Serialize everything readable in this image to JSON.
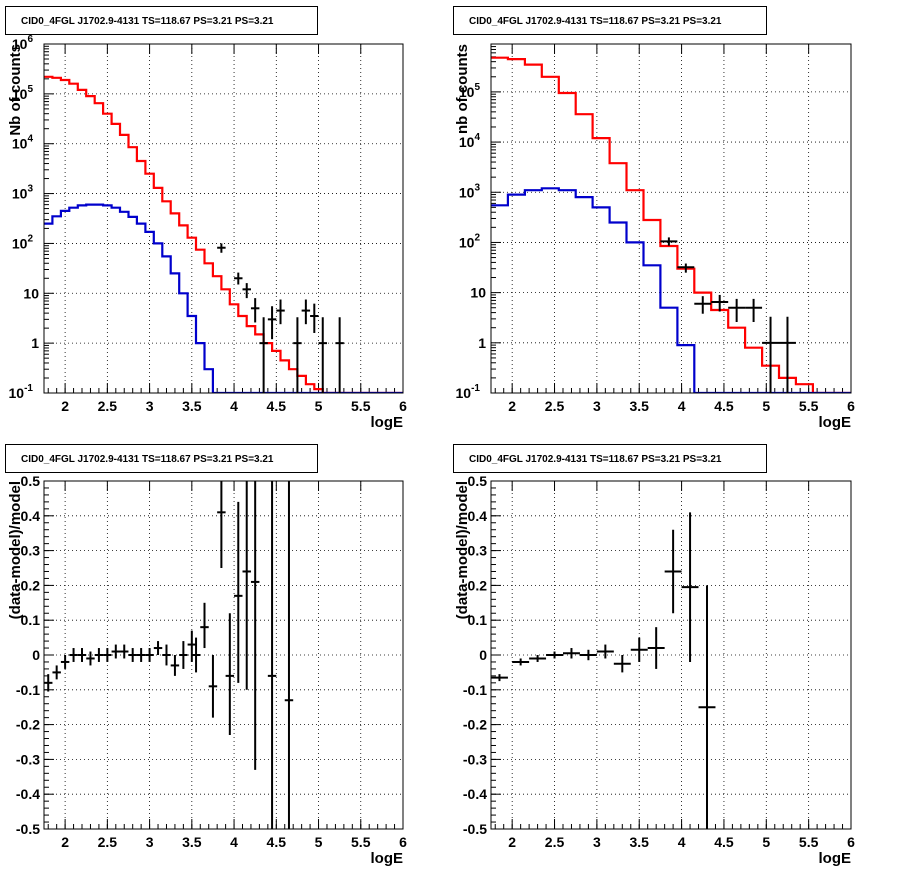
{
  "chart_data": [
    {
      "type": "line",
      "title": "CID0_4FGL J1702.9-4131 TS=118.67 PS=3.21 PS=3.21",
      "xlabel": "logE",
      "ylabel": "Nb of counts",
      "ylog": true,
      "xlim": [
        1.75,
        6.0
      ],
      "ylim": [
        0.1,
        1000000
      ],
      "xticks": [
        "2",
        "2.5",
        "3",
        "3.5",
        "4",
        "4.5",
        "5",
        "5.5",
        "6"
      ],
      "yticks": [
        {
          "base": "10",
          "exp": "-1"
        },
        {
          "base": "1",
          "exp": ""
        },
        {
          "base": "10",
          "exp": ""
        },
        {
          "base": "10",
          "exp": "2"
        },
        {
          "base": "10",
          "exp": "3"
        },
        {
          "base": "10",
          "exp": "4"
        },
        {
          "base": "10",
          "exp": "5"
        },
        {
          "base": "10",
          "exp": "6"
        }
      ],
      "grid": true,
      "bin_edges": [
        1.75,
        1.85,
        1.95,
        2.05,
        2.15,
        2.25,
        2.35,
        2.45,
        2.55,
        2.65,
        2.75,
        2.85,
        2.95,
        3.05,
        3.15,
        3.25,
        3.35,
        3.45,
        3.55,
        3.65,
        3.75,
        3.85,
        3.95,
        4.05,
        4.15,
        4.25,
        4.35,
        4.45,
        4.55,
        4.65,
        4.75,
        4.85,
        4.95,
        5.05,
        5.15,
        5.25,
        5.35,
        5.45,
        5.55,
        5.65,
        5.75,
        5.85,
        5.95,
        6.0
      ],
      "series": [
        {
          "color": "#ff0000",
          "style": "step",
          "values": [
            220000,
            210000,
            190000,
            160000,
            120000,
            90000,
            65000,
            40000,
            25000,
            15000,
            8500,
            4500,
            2500,
            1300,
            700,
            400,
            230,
            130,
            75,
            40,
            22,
            12,
            6,
            3.5,
            2.2,
            1.5,
            1.0,
            0.7,
            0.45,
            0.3,
            0.22,
            0.15,
            0.12,
            0.1,
            0.1,
            0.1,
            0.1,
            0.1,
            0.1,
            0.1,
            0.1,
            0.1,
            0.1
          ]
        },
        {
          "color": "#0000cc",
          "style": "step",
          "values": [
            250,
            350,
            450,
            520,
            580,
            600,
            600,
            580,
            520,
            430,
            340,
            250,
            170,
            100,
            55,
            25,
            10,
            3.5,
            1.0,
            0.3,
            0.1,
            0.1,
            0.1,
            0.1,
            0.1,
            0.1,
            0.1,
            0.1,
            0.1,
            0.1,
            0.1,
            0.1,
            0.1,
            0.1,
            0.1,
            0.1,
            0.1,
            0.1,
            0.1,
            0.1,
            0.1,
            0.1,
            0.1
          ]
        },
        {
          "color": "#000000",
          "style": "errorbars",
          "points": [
            {
              "x": 3.85,
              "y": 82,
              "lo": 65,
              "hi": 100,
              "xerr": 0.05
            },
            {
              "x": 4.05,
              "y": 20,
              "lo": 15,
              "hi": 26,
              "xerr": 0.05
            },
            {
              "x": 4.15,
              "y": 12,
              "lo": 8,
              "hi": 16,
              "xerr": 0.05
            },
            {
              "x": 4.25,
              "y": 5,
              "lo": 2.6,
              "hi": 8,
              "xerr": 0.05
            },
            {
              "x": 4.35,
              "y": 1,
              "lo": 0.1,
              "hi": 3.3,
              "xerr": 0.05
            },
            {
              "x": 4.45,
              "y": 3,
              "lo": 1.2,
              "hi": 5.5,
              "xerr": 0.05
            },
            {
              "x": 4.55,
              "y": 4.5,
              "lo": 2.4,
              "hi": 7.5,
              "xerr": 0.05
            },
            {
              "x": 4.75,
              "y": 1,
              "lo": 0.1,
              "hi": 3.3,
              "xerr": 0.05
            },
            {
              "x": 4.85,
              "y": 4.5,
              "lo": 2.4,
              "hi": 7.5,
              "xerr": 0.05
            },
            {
              "x": 4.95,
              "y": 3.5,
              "lo": 1.6,
              "hi": 6.2,
              "xerr": 0.05
            },
            {
              "x": 5.05,
              "y": 1,
              "lo": 0.1,
              "hi": 3.3,
              "xerr": 0.05
            },
            {
              "x": 5.25,
              "y": 1,
              "lo": 0.1,
              "hi": 3.3,
              "xerr": 0.05
            }
          ]
        }
      ]
    },
    {
      "type": "line",
      "title": "CID0_4FGL J1702.9-4131 TS=118.67 PS=3.21 PS=3.21",
      "xlabel": "logE",
      "ylabel": "nb of counts",
      "ylog": true,
      "xlim": [
        1.75,
        6.0
      ],
      "ylim": [
        0.1,
        900000
      ],
      "xticks": [
        "2",
        "2.5",
        "3",
        "3.5",
        "4",
        "4.5",
        "5",
        "5.5",
        "6"
      ],
      "yticks": [
        {
          "base": "10",
          "exp": "-1"
        },
        {
          "base": "1",
          "exp": ""
        },
        {
          "base": "10",
          "exp": ""
        },
        {
          "base": "10",
          "exp": "2"
        },
        {
          "base": "10",
          "exp": "3"
        },
        {
          "base": "10",
          "exp": "4"
        },
        {
          "base": "10",
          "exp": "5"
        }
      ],
      "grid": true,
      "bin_edges": [
        1.75,
        1.95,
        2.15,
        2.35,
        2.55,
        2.75,
        2.95,
        3.15,
        3.35,
        3.55,
        3.75,
        3.95,
        4.15,
        4.35,
        4.55,
        4.75,
        4.95,
        5.15,
        5.35,
        5.55,
        5.75,
        5.95,
        6.0
      ],
      "series": [
        {
          "color": "#ff0000",
          "style": "step",
          "values": [
            480000,
            450000,
            350000,
            200000,
            95000,
            36000,
            12000,
            3800,
            1100,
            280,
            85,
            30,
            10,
            4.5,
            2.0,
            0.8,
            0.35,
            0.2,
            0.15,
            0.1,
            0.1,
            0.1
          ]
        },
        {
          "color": "#0000cc",
          "style": "step",
          "values": [
            550,
            900,
            1100,
            1200,
            1100,
            800,
            500,
            250,
            100,
            35,
            5,
            0.9,
            0.1,
            0.1,
            0.1,
            0.1,
            0.1,
            0.1,
            0.1,
            0.1,
            0.1,
            0.1
          ]
        },
        {
          "color": "#000000",
          "style": "errorbars",
          "points": [
            {
              "x": 3.85,
              "y": 105,
              "lo": 86,
              "hi": 126,
              "xerr": 0.1
            },
            {
              "x": 4.05,
              "y": 32,
              "lo": 25,
              "hi": 38,
              "xerr": 0.1
            },
            {
              "x": 4.25,
              "y": 6,
              "lo": 3.8,
              "hi": 8.5,
              "xerr": 0.1
            },
            {
              "x": 4.45,
              "y": 6.5,
              "lo": 4.2,
              "hi": 9.0,
              "xerr": 0.1
            },
            {
              "x": 4.65,
              "y": 5,
              "lo": 2.6,
              "hi": 7.5,
              "xerr": 0.1
            },
            {
              "x": 4.85,
              "y": 5,
              "lo": 2.6,
              "hi": 7.5,
              "xerr": 0.1
            },
            {
              "x": 5.05,
              "y": 1,
              "lo": 0.1,
              "hi": 3.3,
              "xerr": 0.1
            },
            {
              "x": 5.25,
              "y": 1,
              "lo": 0.1,
              "hi": 3.3,
              "xerr": 0.1
            }
          ]
        }
      ]
    },
    {
      "type": "scatter",
      "title": "CID0_4FGL J1702.9-4131 TS=118.67 PS=3.21 PS=3.21",
      "xlabel": "logE",
      "ylabel": "(data-model)/model",
      "ylog": false,
      "xlim": [
        1.75,
        6.0
      ],
      "ylim": [
        -0.5,
        0.5
      ],
      "xticks": [
        "2",
        "2.5",
        "3",
        "3.5",
        "4",
        "4.5",
        "5",
        "5.5",
        "6"
      ],
      "yticks": [
        "-0.5",
        "-0.4",
        "-0.3",
        "-0.2",
        "-0.1",
        "0",
        "0.1",
        "0.2",
        "0.3",
        "0.4",
        "0.5"
      ],
      "grid": true,
      "series": [
        {
          "color": "#000000",
          "style": "errorbars",
          "points": [
            {
              "x": 1.8,
              "y": -0.08,
              "lo": -0.105,
              "hi": -0.055,
              "xerr": 0.05
            },
            {
              "x": 1.9,
              "y": -0.05,
              "lo": -0.07,
              "hi": -0.03,
              "xerr": 0.05
            },
            {
              "x": 2.0,
              "y": -0.02,
              "lo": -0.04,
              "hi": 0.0,
              "xerr": 0.05
            },
            {
              "x": 2.1,
              "y": 0.0,
              "lo": -0.02,
              "hi": 0.02,
              "xerr": 0.05
            },
            {
              "x": 2.2,
              "y": 0.0,
              "lo": -0.02,
              "hi": 0.02,
              "xerr": 0.05
            },
            {
              "x": 2.3,
              "y": -0.01,
              "lo": -0.03,
              "hi": 0.01,
              "xerr": 0.05
            },
            {
              "x": 2.4,
              "y": 0.0,
              "lo": -0.02,
              "hi": 0.02,
              "xerr": 0.05
            },
            {
              "x": 2.5,
              "y": 0.0,
              "lo": -0.02,
              "hi": 0.02,
              "xerr": 0.05
            },
            {
              "x": 2.6,
              "y": 0.01,
              "lo": -0.01,
              "hi": 0.03,
              "xerr": 0.05
            },
            {
              "x": 2.7,
              "y": 0.01,
              "lo": -0.01,
              "hi": 0.03,
              "xerr": 0.05
            },
            {
              "x": 2.8,
              "y": 0.0,
              "lo": -0.02,
              "hi": 0.02,
              "xerr": 0.05
            },
            {
              "x": 2.9,
              "y": 0.0,
              "lo": -0.02,
              "hi": 0.02,
              "xerr": 0.05
            },
            {
              "x": 3.0,
              "y": 0.0,
              "lo": -0.02,
              "hi": 0.02,
              "xerr": 0.05
            },
            {
              "x": 3.1,
              "y": 0.02,
              "lo": 0.0,
              "hi": 0.04,
              "xerr": 0.05
            },
            {
              "x": 3.2,
              "y": 0.0,
              "lo": -0.03,
              "hi": 0.03,
              "xerr": 0.05
            },
            {
              "x": 3.3,
              "y": -0.03,
              "lo": -0.06,
              "hi": 0.0,
              "xerr": 0.05
            },
            {
              "x": 3.4,
              "y": 0.0,
              "lo": -0.04,
              "hi": 0.04,
              "xerr": 0.05
            },
            {
              "x": 3.5,
              "y": 0.03,
              "lo": -0.02,
              "hi": 0.07,
              "xerr": 0.05
            },
            {
              "x": 3.55,
              "y": 0.0,
              "lo": -0.05,
              "hi": 0.05,
              "xerr": 0.05
            },
            {
              "x": 3.65,
              "y": 0.08,
              "lo": 0.02,
              "hi": 0.15,
              "xerr": 0.05
            },
            {
              "x": 3.75,
              "y": -0.09,
              "lo": -0.18,
              "hi": 0.0,
              "xerr": 0.05
            },
            {
              "x": 3.85,
              "y": 0.41,
              "lo": 0.25,
              "hi": 0.5,
              "xerr": 0.05
            },
            {
              "x": 3.95,
              "y": -0.06,
              "lo": -0.23,
              "hi": 0.12,
              "xerr": 0.05
            },
            {
              "x": 4.05,
              "y": 0.17,
              "lo": -0.08,
              "hi": 0.44,
              "xerr": 0.05
            },
            {
              "x": 4.15,
              "y": 0.24,
              "lo": -0.1,
              "hi": 0.5,
              "xerr": 0.05
            },
            {
              "x": 4.25,
              "y": 0.21,
              "lo": -0.33,
              "hi": 0.5,
              "xerr": 0.05
            },
            {
              "x": 4.45,
              "y": -0.06,
              "lo": -0.5,
              "hi": 0.5,
              "xerr": 0.05
            },
            {
              "x": 4.65,
              "y": -0.13,
              "lo": -0.5,
              "hi": 0.5,
              "xerr": 0.05
            }
          ]
        }
      ]
    },
    {
      "type": "scatter",
      "title": "CID0_4FGL J1702.9-4131 TS=118.67 PS=3.21 PS=3.21",
      "xlabel": "logE",
      "ylabel": "(data-model)/model",
      "ylog": false,
      "xlim": [
        1.75,
        6.0
      ],
      "ylim": [
        -0.5,
        0.5
      ],
      "xticks": [
        "2",
        "2.5",
        "3",
        "3.5",
        "4",
        "4.5",
        "5",
        "5.5",
        "6"
      ],
      "yticks": [
        "-0.5",
        "-0.4",
        "-0.3",
        "-0.2",
        "-0.1",
        "0",
        "0.1",
        "0.2",
        "0.3",
        "0.4",
        "0.5"
      ],
      "grid": true,
      "series": [
        {
          "color": "#000000",
          "style": "errorbars",
          "points": [
            {
              "x": 1.85,
              "y": -0.065,
              "lo": -0.075,
              "hi": -0.055,
              "xerr": 0.1
            },
            {
              "x": 2.1,
              "y": -0.02,
              "lo": -0.03,
              "hi": -0.01,
              "xerr": 0.1
            },
            {
              "x": 2.3,
              "y": -0.01,
              "lo": -0.02,
              "hi": 0.0,
              "xerr": 0.1
            },
            {
              "x": 2.5,
              "y": 0.0,
              "lo": -0.01,
              "hi": 0.01,
              "xerr": 0.1
            },
            {
              "x": 2.7,
              "y": 0.005,
              "lo": -0.01,
              "hi": 0.02,
              "xerr": 0.1
            },
            {
              "x": 2.9,
              "y": 0.0,
              "lo": -0.015,
              "hi": 0.015,
              "xerr": 0.1
            },
            {
              "x": 3.1,
              "y": 0.01,
              "lo": -0.01,
              "hi": 0.03,
              "xerr": 0.1
            },
            {
              "x": 3.3,
              "y": -0.025,
              "lo": -0.05,
              "hi": 0.0,
              "xerr": 0.1
            },
            {
              "x": 3.5,
              "y": 0.015,
              "lo": -0.02,
              "hi": 0.05,
              "xerr": 0.1
            },
            {
              "x": 3.7,
              "y": 0.02,
              "lo": -0.04,
              "hi": 0.08,
              "xerr": 0.1
            },
            {
              "x": 3.9,
              "y": 0.24,
              "lo": 0.12,
              "hi": 0.36,
              "xerr": 0.1
            },
            {
              "x": 4.1,
              "y": 0.195,
              "lo": -0.02,
              "hi": 0.41,
              "xerr": 0.1
            },
            {
              "x": 4.3,
              "y": -0.15,
              "lo": -0.5,
              "hi": 0.2,
              "xerr": 0.1
            }
          ]
        }
      ]
    }
  ]
}
